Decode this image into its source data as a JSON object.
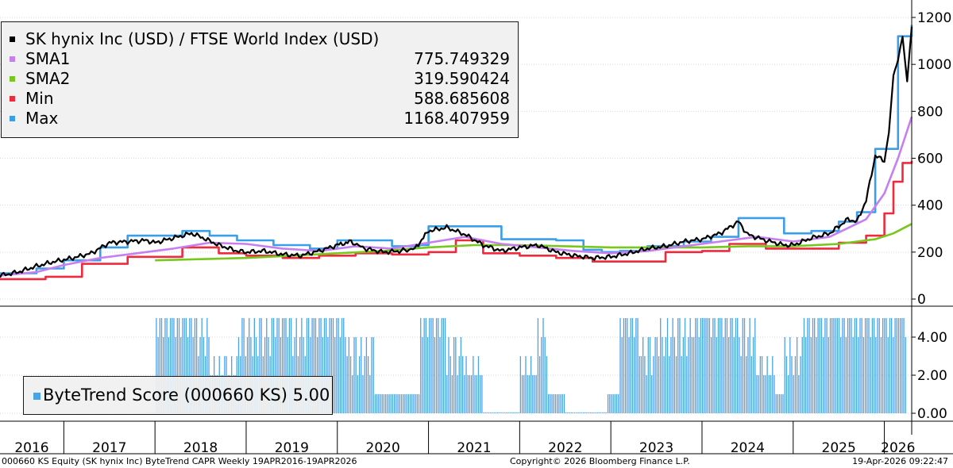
{
  "legend_main": {
    "title": "SK hynix Inc (USD) / FTSE World Index (USD)",
    "entries": [
      {
        "label": "SMA1",
        "value": "775.749329",
        "color": "#c77ff0"
      },
      {
        "label": "SMA2",
        "value": "319.590424",
        "color": "#77c71c"
      },
      {
        "label": "Min",
        "value": "588.685608",
        "color": "#ef2a3c"
      },
      {
        "label": "Max",
        "value": "1168.407959",
        "color": "#3a9ee8"
      }
    ],
    "title_color": "#000000"
  },
  "legend_score": {
    "label": "ByteTrend Score (000660 KS) 5.00",
    "color": "#4aa3e6"
  },
  "footer": {
    "left": "000660 KS Equity (SK hynix Inc) ByteTrend CAPR Weekly 19APR2016-19APR2026",
    "center": "Copyright© 2026 Bloomberg Finance L.P.",
    "right": "19-Apr-2026 09:22:47"
  },
  "chart_data": [
    {
      "type": "line",
      "x_ticks": [
        "2016",
        "2017",
        "2018",
        "2019",
        "2020",
        "2021",
        "2022",
        "2023",
        "2024",
        "2025",
        "2026"
      ],
      "y_ticks": [
        "0",
        "200",
        "400",
        "600",
        "800",
        "1000",
        "1200"
      ],
      "ylim": [
        0,
        1200
      ],
      "xlim": [
        2016.3,
        2026.3
      ],
      "grid": true,
      "legend": "top-left",
      "series": [
        {
          "name": "SK hynix Inc (USD) / FTSE World Index (USD)",
          "color": "#000000",
          "points": [
            [
              2016.3,
              100
            ],
            [
              2016.5,
              115
            ],
            [
              2016.7,
              140
            ],
            [
              2016.9,
              160
            ],
            [
              2017.1,
              175
            ],
            [
              2017.3,
              195
            ],
            [
              2017.5,
              240
            ],
            [
              2017.7,
              245
            ],
            [
              2017.9,
              250
            ],
            [
              2018.0,
              240
            ],
            [
              2018.2,
              260
            ],
            [
              2018.4,
              280
            ],
            [
              2018.5,
              265
            ],
            [
              2018.7,
              230
            ],
            [
              2018.9,
              205
            ],
            [
              2019.0,
              200
            ],
            [
              2019.2,
              205
            ],
            [
              2019.4,
              190
            ],
            [
              2019.6,
              185
            ],
            [
              2019.8,
              205
            ],
            [
              2020.0,
              230
            ],
            [
              2020.15,
              245
            ],
            [
              2020.3,
              215
            ],
            [
              2020.5,
              200
            ],
            [
              2020.7,
              205
            ],
            [
              2020.85,
              215
            ],
            [
              2021.0,
              290
            ],
            [
              2021.2,
              305
            ],
            [
              2021.4,
              275
            ],
            [
              2021.6,
              230
            ],
            [
              2021.8,
              205
            ],
            [
              2022.0,
              220
            ],
            [
              2022.2,
              230
            ],
            [
              2022.4,
              200
            ],
            [
              2022.6,
              185
            ],
            [
              2022.8,
              175
            ],
            [
              2023.0,
              180
            ],
            [
              2023.2,
              195
            ],
            [
              2023.4,
              215
            ],
            [
              2023.6,
              225
            ],
            [
              2023.8,
              245
            ],
            [
              2024.0,
              255
            ],
            [
              2024.2,
              280
            ],
            [
              2024.4,
              330
            ],
            [
              2024.5,
              275
            ],
            [
              2024.7,
              250
            ],
            [
              2024.9,
              230
            ],
            [
              2025.0,
              230
            ],
            [
              2025.2,
              260
            ],
            [
              2025.4,
              280
            ],
            [
              2025.6,
              340
            ],
            [
              2025.7,
              330
            ],
            [
              2025.8,
              420
            ],
            [
              2025.9,
              610
            ],
            [
              2026.0,
              590
            ],
            [
              2026.05,
              700
            ],
            [
              2026.1,
              960
            ],
            [
              2026.15,
              1020
            ],
            [
              2026.2,
              1110
            ],
            [
              2026.25,
              935
            ],
            [
              2026.3,
              1160
            ]
          ]
        },
        {
          "name": "SMA1",
          "color": "#c77ff0",
          "points": [
            [
              2016.3,
              100
            ],
            [
              2016.7,
              115
            ],
            [
              2017.0,
              145
            ],
            [
              2017.4,
              175
            ],
            [
              2017.8,
              195
            ],
            [
              2018.2,
              215
            ],
            [
              2018.6,
              240
            ],
            [
              2019.0,
              235
            ],
            [
              2019.4,
              215
            ],
            [
              2019.8,
              205
            ],
            [
              2020.2,
              225
            ],
            [
              2020.6,
              215
            ],
            [
              2021.0,
              240
            ],
            [
              2021.4,
              265
            ],
            [
              2021.8,
              235
            ],
            [
              2022.2,
              220
            ],
            [
              2022.6,
              205
            ],
            [
              2023.0,
              195
            ],
            [
              2023.4,
              205
            ],
            [
              2023.8,
              225
            ],
            [
              2024.2,
              245
            ],
            [
              2024.6,
              265
            ],
            [
              2025.0,
              245
            ],
            [
              2025.4,
              265
            ],
            [
              2025.8,
              340
            ],
            [
              2026.0,
              450
            ],
            [
              2026.15,
              600
            ],
            [
              2026.3,
              776
            ]
          ]
        },
        {
          "name": "SMA2",
          "color": "#77c71c",
          "points": [
            [
              2018.0,
              165
            ],
            [
              2018.5,
              170
            ],
            [
              2019.0,
              175
            ],
            [
              2019.5,
              185
            ],
            [
              2020.0,
              195
            ],
            [
              2020.5,
              205
            ],
            [
              2021.0,
              220
            ],
            [
              2021.5,
              230
            ],
            [
              2022.0,
              230
            ],
            [
              2022.5,
              225
            ],
            [
              2023.0,
              220
            ],
            [
              2023.5,
              220
            ],
            [
              2024.0,
              220
            ],
            [
              2024.5,
              225
            ],
            [
              2025.0,
              225
            ],
            [
              2025.5,
              235
            ],
            [
              2025.9,
              255
            ],
            [
              2026.1,
              280
            ],
            [
              2026.3,
              320
            ]
          ]
        },
        {
          "name": "Min",
          "color": "#ef2a3c",
          "points": [
            [
              2016.3,
              85
            ],
            [
              2016.8,
              95
            ],
            [
              2017.2,
              150
            ],
            [
              2017.7,
              180
            ],
            [
              2018.0,
              180
            ],
            [
              2018.3,
              220
            ],
            [
              2018.7,
              195
            ],
            [
              2019.0,
              185
            ],
            [
              2019.4,
              175
            ],
            [
              2019.8,
              185
            ],
            [
              2020.2,
              195
            ],
            [
              2020.6,
              190
            ],
            [
              2021.0,
              200
            ],
            [
              2021.3,
              250
            ],
            [
              2021.6,
              195
            ],
            [
              2022.0,
              185
            ],
            [
              2022.4,
              175
            ],
            [
              2022.8,
              160
            ],
            [
              2023.2,
              160
            ],
            [
              2023.6,
              200
            ],
            [
              2024.0,
              205
            ],
            [
              2024.3,
              235
            ],
            [
              2024.7,
              215
            ],
            [
              2025.0,
              215
            ],
            [
              2025.5,
              240
            ],
            [
              2025.8,
              270
            ],
            [
              2026.0,
              365
            ],
            [
              2026.1,
              500
            ],
            [
              2026.2,
              580
            ],
            [
              2026.3,
              589
            ]
          ]
        },
        {
          "name": "Max",
          "color": "#3a9ee8",
          "points": [
            [
              2016.3,
              110
            ],
            [
              2016.7,
              130
            ],
            [
              2017.0,
              165
            ],
            [
              2017.4,
              220
            ],
            [
              2017.7,
              270
            ],
            [
              2018.0,
              270
            ],
            [
              2018.3,
              290
            ],
            [
              2018.6,
              270
            ],
            [
              2018.9,
              250
            ],
            [
              2019.3,
              230
            ],
            [
              2019.7,
              215
            ],
            [
              2020.0,
              250
            ],
            [
              2020.3,
              250
            ],
            [
              2020.6,
              225
            ],
            [
              2020.9,
              230
            ],
            [
              2021.0,
              310
            ],
            [
              2021.4,
              310
            ],
            [
              2021.8,
              255
            ],
            [
              2022.0,
              255
            ],
            [
              2022.4,
              250
            ],
            [
              2022.7,
              210
            ],
            [
              2022.9,
              200
            ],
            [
              2023.1,
              205
            ],
            [
              2023.4,
              225
            ],
            [
              2023.8,
              245
            ],
            [
              2024.1,
              265
            ],
            [
              2024.4,
              345
            ],
            [
              2024.7,
              345
            ],
            [
              2024.9,
              280
            ],
            [
              2025.2,
              290
            ],
            [
              2025.5,
              330
            ],
            [
              2025.7,
              370
            ],
            [
              2025.9,
              640
            ],
            [
              2026.05,
              640
            ],
            [
              2026.15,
              1120
            ],
            [
              2026.25,
              1120
            ],
            [
              2026.3,
              1168
            ]
          ]
        }
      ]
    },
    {
      "type": "bar",
      "y_ticks": [
        "0.00",
        "2.00",
        "4.00"
      ],
      "ylim": [
        0,
        5
      ],
      "series": [
        {
          "name": "ByteTrend Score (000660 KS)",
          "color": "#4aa3e6",
          "segments": [
            [
              2016.3,
              1
            ]
          ]
        }
      ],
      "levels": [
        [
          2017.9,
          2.0,
          0
        ],
        [
          2018.0,
          2.0,
          5
        ],
        [
          2018.3,
          2.0,
          5
        ],
        [
          2018.45,
          2.0,
          4
        ],
        [
          2018.6,
          2.0,
          2
        ],
        [
          2018.9,
          2.0,
          4
        ],
        [
          2019.1,
          2.0,
          4
        ],
        [
          2019.3,
          2.0,
          5
        ],
        [
          2019.5,
          2.0,
          4
        ],
        [
          2019.7,
          2.0,
          5
        ],
        [
          2019.85,
          2.0,
          5
        ],
        [
          2020.1,
          2.0,
          3
        ],
        [
          2020.4,
          2.0,
          1
        ],
        [
          2020.7,
          2.0,
          1
        ],
        [
          2020.9,
          2.0,
          5
        ],
        [
          2021.2,
          2.0,
          3
        ],
        [
          2021.4,
          2.0,
          2
        ],
        [
          2021.6,
          2.0,
          0
        ],
        [
          2021.9,
          2.0,
          0
        ],
        [
          2022.0,
          2.0,
          2
        ],
        [
          2022.2,
          2.0,
          4
        ],
        [
          2022.3,
          2.0,
          1
        ],
        [
          2022.5,
          2.0,
          0
        ],
        [
          2022.8,
          2.0,
          0
        ],
        [
          2022.95,
          2.0,
          1
        ],
        [
          2023.1,
          2.0,
          5
        ],
        [
          2023.3,
          2.0,
          3
        ],
        [
          2023.5,
          2.0,
          4
        ],
        [
          2023.7,
          2.0,
          4
        ],
        [
          2023.9,
          2.0,
          5
        ],
        [
          2024.1,
          2.0,
          5
        ],
        [
          2024.4,
          2.0,
          4
        ],
        [
          2024.6,
          2.0,
          2
        ],
        [
          2024.8,
          2.0,
          1
        ],
        [
          2024.9,
          2.0,
          3
        ],
        [
          2025.1,
          2.0,
          5
        ],
        [
          2025.4,
          2.0,
          5
        ],
        [
          2025.7,
          2.0,
          5
        ],
        [
          2026.0,
          2.0,
          5
        ],
        [
          2026.3,
          2.0,
          5
        ]
      ]
    }
  ]
}
